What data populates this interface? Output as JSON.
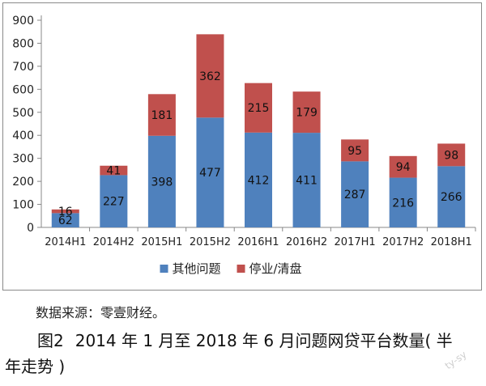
{
  "chart_data": {
    "type": "stacked-bar",
    "categories": [
      "2014H1",
      "2014H2",
      "2015H1",
      "2015H2",
      "2016H1",
      "2016H2",
      "2017H1",
      "2017H2",
      "2018H1"
    ],
    "series": [
      {
        "name": "其他问题",
        "color": "#4f81bd",
        "values": [
          62,
          227,
          398,
          477,
          412,
          411,
          287,
          216,
          266
        ]
      },
      {
        "name": "停业/清盘",
        "color": "#c0504d",
        "values": [
          16,
          41,
          181,
          362,
          215,
          179,
          95,
          94,
          98
        ]
      }
    ],
    "ylim": [
      0,
      900
    ],
    "yticks": [
      0,
      100,
      200,
      300,
      400,
      500,
      600,
      700,
      800,
      900
    ],
    "grid": false,
    "legend": "bottom"
  },
  "source_note": "数据来源：零壹财经。",
  "caption": {
    "figure_no": "图2",
    "text_line1": "2014 年 1 月至 2018 年 6 月问题网贷平台数量(  半",
    "text_line2": "年走势 )"
  },
  "watermark": "ty-sy"
}
